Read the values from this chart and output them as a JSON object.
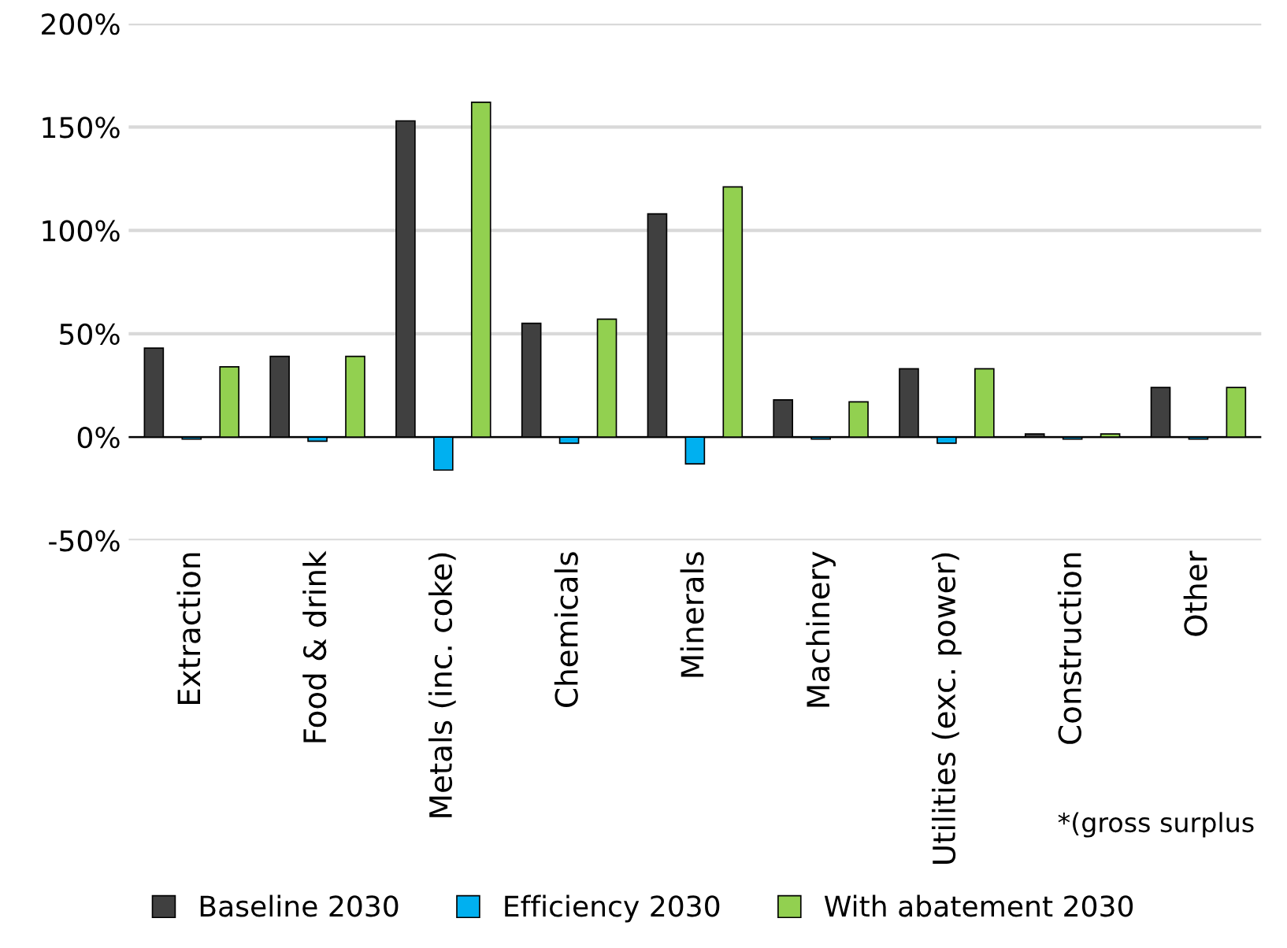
{
  "chart_data": {
    "type": "bar",
    "categories": [
      "Extraction",
      "Food & drink",
      "Metals (inc. coke)",
      "Chemicals",
      "Minerals",
      "Machinery",
      "Utilities (exc. power)",
      "Construction",
      "Other"
    ],
    "series": [
      {
        "name": "Baseline 2030",
        "color": "#404040",
        "values": [
          43,
          39,
          153,
          55,
          108,
          18,
          33,
          1.5,
          24
        ]
      },
      {
        "name": "Efficiency 2030",
        "color": "#00b0f0",
        "values": [
          -1,
          -2,
          -16,
          -3,
          -13,
          -1,
          -3,
          -1,
          -1
        ]
      },
      {
        "name": "With abatement 2030",
        "color": "#92d050",
        "values": [
          34,
          39,
          162,
          57,
          121,
          17,
          33,
          1.5,
          24
        ]
      }
    ],
    "ylim": [
      -50,
      200
    ],
    "yticks": [
      {
        "value": -50,
        "label": "-50%"
      },
      {
        "value": 0,
        "label": "0%"
      },
      {
        "value": 50,
        "label": "50%"
      },
      {
        "value": 100,
        "label": "100%"
      },
      {
        "value": 150,
        "label": "150%"
      },
      {
        "value": 200,
        "label": "200%"
      }
    ],
    "grid": "y",
    "legend": "bottom",
    "annotations": [
      "*(gross surplus"
    ]
  }
}
